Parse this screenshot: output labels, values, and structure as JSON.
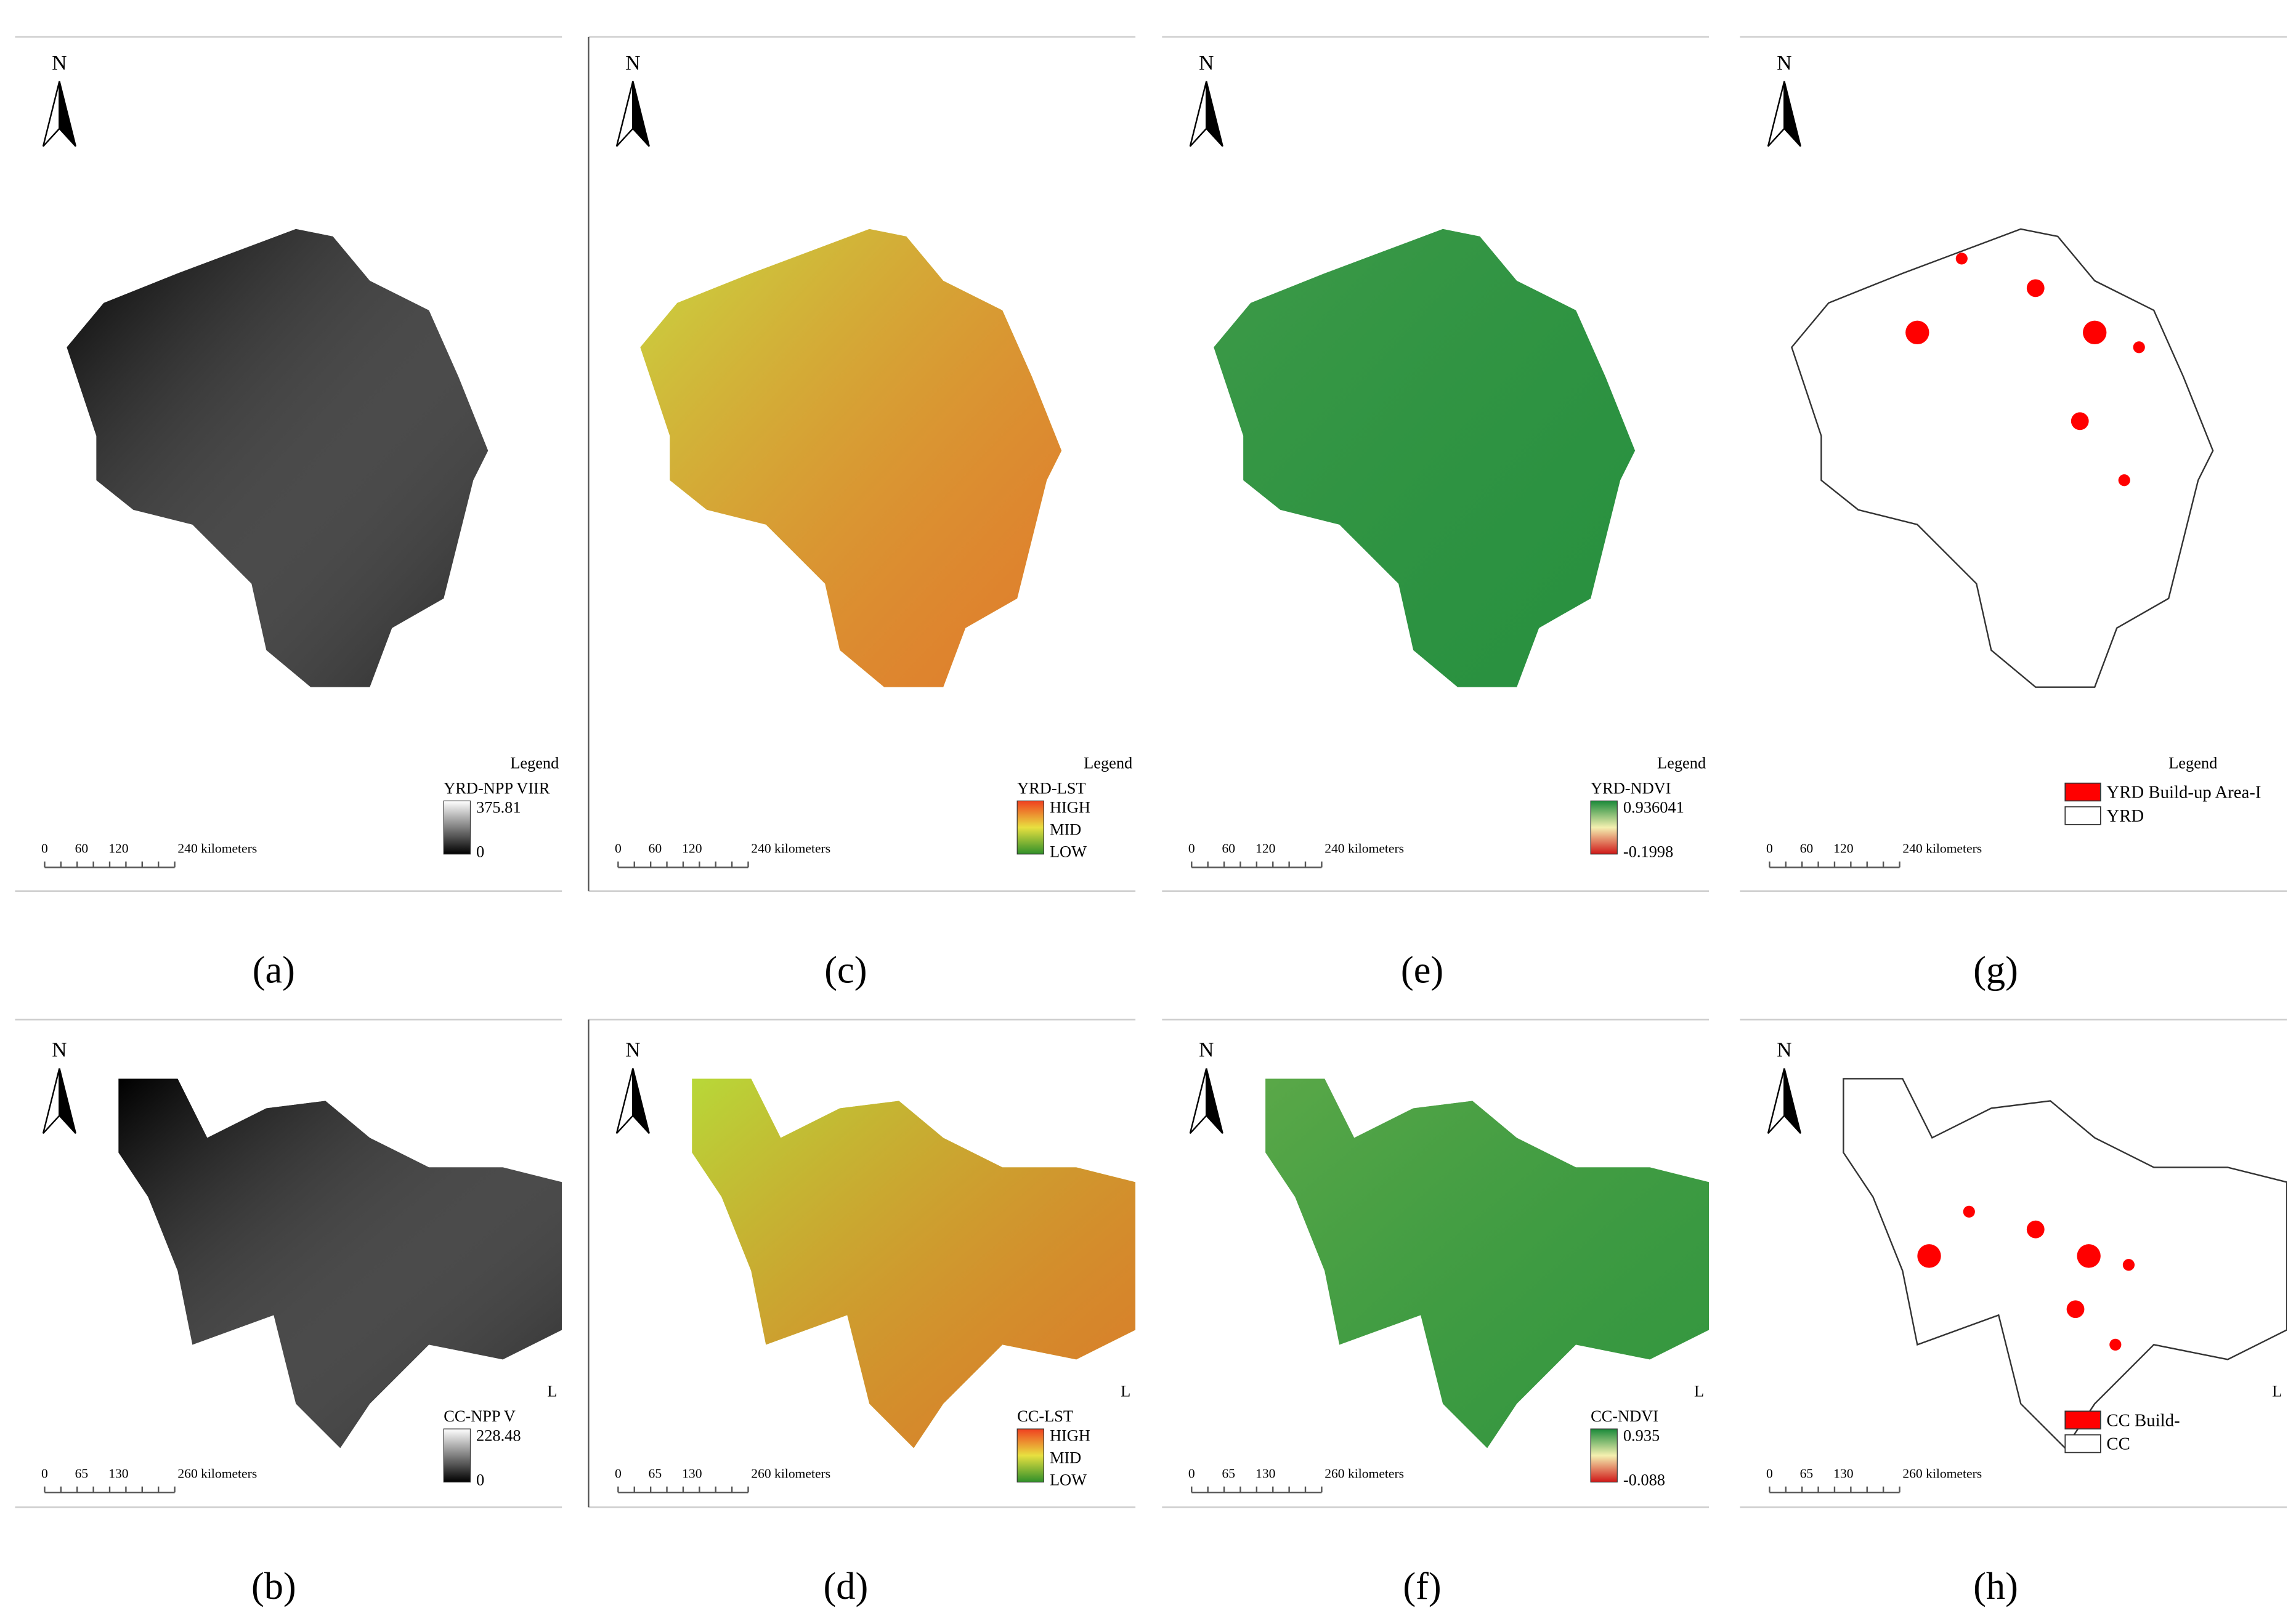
{
  "panels": [
    {
      "caption": "(a)",
      "north": "N",
      "legend_title": "Legend",
      "layer": "YRD-NPP VIIR",
      "items": [
        "375.81",
        "0"
      ],
      "style": "ramp",
      "colors": [
        "#ffffff",
        "#000000"
      ],
      "region": "yrd",
      "map_fill": "#000000",
      "scale": [
        "0",
        "60",
        "120",
        "240 kilometers"
      ]
    },
    {
      "caption": "(b)",
      "north": "N",
      "legend_title": "L",
      "layer": "CC-NPP V",
      "items": [
        "228.48",
        "0"
      ],
      "style": "ramp",
      "colors": [
        "#ffffff",
        "#000000"
      ],
      "region": "cc",
      "map_fill": "#000000",
      "scale": [
        "0",
        "65",
        "130",
        "260 kilometers"
      ]
    },
    {
      "caption": "(c)",
      "north": "N",
      "legend_title": "Legend",
      "layer": "YRD-LST",
      "items": [
        "HIGH",
        "MID",
        "LOW"
      ],
      "style": "ramp",
      "colors": [
        "#f04020",
        "#e8e040",
        "#30902a"
      ],
      "region": "yrd",
      "map_fill": "#c8d840",
      "scale": [
        "0",
        "60",
        "120",
        "240 kilometers"
      ]
    },
    {
      "caption": "(d)",
      "north": "N",
      "legend_title": "L",
      "layer": "CC-LST",
      "items": [
        "HIGH",
        "MID",
        "LOW"
      ],
      "style": "ramp",
      "colors": [
        "#f04020",
        "#e8e040",
        "#30902a"
      ],
      "region": "cc",
      "map_fill": "#b8d838",
      "scale": [
        "0",
        "65",
        "130",
        "260 kilometers"
      ]
    },
    {
      "caption": "(e)",
      "north": "N",
      "legend_title": "Legend",
      "layer": "YRD-NDVI",
      "items": [
        "0.936041",
        "-0.1998"
      ],
      "style": "ramp",
      "colors": [
        "#1a8a3a",
        "#f4f0b0",
        "#d01818"
      ],
      "region": "yrd",
      "map_fill": "#3e9a48",
      "scale": [
        "0",
        "60",
        "120",
        "240 kilometers"
      ]
    },
    {
      "caption": "(f)",
      "north": "N",
      "legend_title": "L",
      "layer": "CC-NDVI",
      "items": [
        "0.935",
        "-0.088"
      ],
      "style": "ramp",
      "colors": [
        "#1a8a3a",
        "#f4f0b0",
        "#d01818"
      ],
      "region": "cc",
      "map_fill": "#5aa848",
      "scale": [
        "0",
        "65",
        "130",
        "260 kilometers"
      ]
    },
    {
      "caption": "(g)",
      "north": "N",
      "legend_title": "Legend",
      "layer": null,
      "items": [
        "YRD Build-up Area-I",
        "YRD"
      ],
      "style": "swatch",
      "colors": [
        "#ff0000",
        "#ffffff"
      ],
      "region": "yrd",
      "map_fill": "#ffffff",
      "scale": [
        "0",
        "60",
        "120",
        "240 kilometers"
      ]
    },
    {
      "caption": "(h)",
      "north": "N",
      "legend_title": "L",
      "layer": null,
      "items": [
        "CC Build-",
        "CC"
      ],
      "style": "swatch",
      "colors": [
        "#ff0000",
        "#ffffff"
      ],
      "region": "cc",
      "map_fill": "#ffffff",
      "scale": [
        "0",
        "65",
        "130",
        "260 kilometers"
      ]
    }
  ]
}
